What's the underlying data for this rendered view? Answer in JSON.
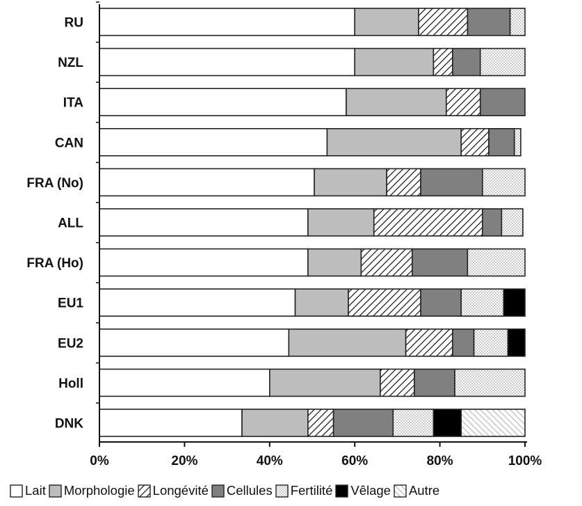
{
  "chart_data": {
    "type": "bar",
    "orientation": "horizontal",
    "stacked": true,
    "categories": [
      "RU",
      "NZL",
      "ITA",
      "CAN",
      "FRA (No)",
      "ALL",
      "FRA (Ho)",
      "EU1",
      "EU2",
      "Holl",
      "DNK"
    ],
    "series": [
      {
        "name": "Lait",
        "fill": "white",
        "values": [
          60,
          60,
          58,
          53.5,
          50.5,
          49,
          49,
          46,
          44.5,
          40,
          33.5
        ]
      },
      {
        "name": "Morphologie",
        "fill": "lightgray",
        "values": [
          15,
          18.5,
          23.5,
          31.5,
          17,
          15.5,
          12.5,
          12.5,
          27.5,
          26,
          15.5
        ]
      },
      {
        "name": "Longévité",
        "fill": "hatch",
        "values": [
          11.5,
          4.5,
          8,
          6.5,
          8,
          25.5,
          12,
          17,
          11,
          8,
          6
        ]
      },
      {
        "name": "Cellules",
        "fill": "darkgray",
        "values": [
          10,
          6.5,
          10.5,
          6,
          14.5,
          4.5,
          13,
          9.5,
          5,
          9.5,
          14
        ]
      },
      {
        "name": "Fertilité",
        "fill": "dots",
        "values": [
          3.5,
          10.5,
          0,
          1.5,
          10,
          5,
          13.5,
          10,
          8,
          16.5,
          9.5
        ]
      },
      {
        "name": "Vêlage",
        "fill": "black",
        "values": [
          0,
          0,
          0,
          0,
          0,
          0,
          0,
          5,
          4,
          0,
          6.5
        ]
      },
      {
        "name": "Autre",
        "fill": "lighthatch",
        "values": [
          0,
          0,
          0,
          0,
          0,
          0,
          0,
          0,
          0,
          0,
          15
        ]
      }
    ],
    "xlim": [
      0,
      100
    ],
    "x_ticks": [
      "0%",
      "20%",
      "40%",
      "60%",
      "80%",
      "100%"
    ],
    "xlabel": "",
    "ylabel": "",
    "grid": false,
    "legend_position": "bottom",
    "colors": {
      "darkgray": "#808080",
      "lightgray": "#bdbdbd",
      "black": "#000000",
      "outline": "#222222"
    }
  }
}
